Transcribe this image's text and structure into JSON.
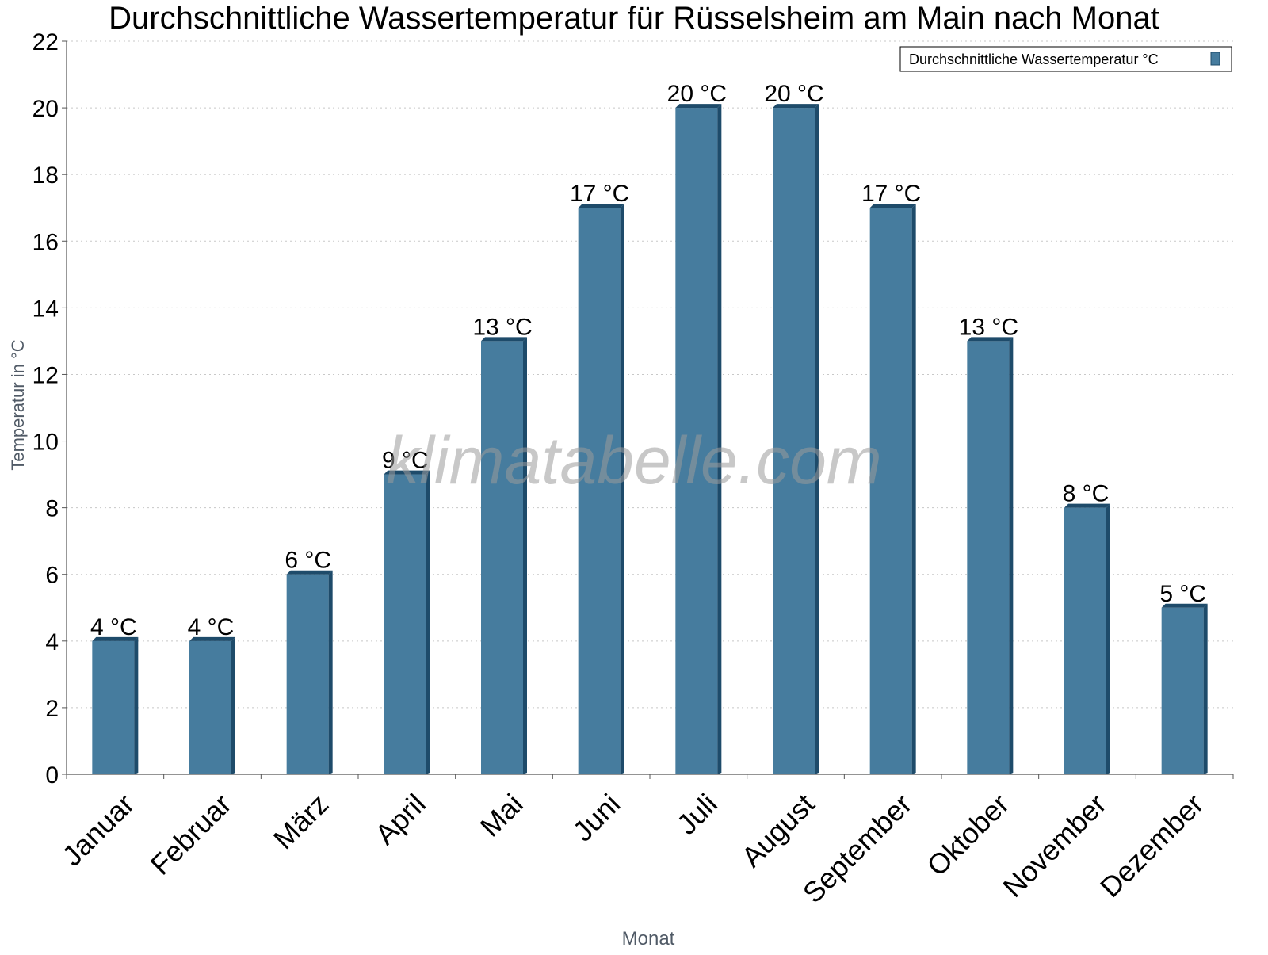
{
  "chart_data": {
    "type": "bar",
    "title": "Durchschnittliche Wassertemperatur für Rüsselsheim am Main nach Monat",
    "xlabel": "Monat",
    "ylabel": "Temperatur in °C",
    "ylim": [
      0,
      22
    ],
    "yticks": [
      0,
      2,
      4,
      6,
      8,
      10,
      12,
      14,
      16,
      18,
      20,
      22
    ],
    "grid": true,
    "legend_position": "top-right",
    "categories": [
      "Januar",
      "Februar",
      "März",
      "April",
      "Mai",
      "Juni",
      "Juli",
      "August",
      "September",
      "Oktober",
      "November",
      "Dezember"
    ],
    "series": [
      {
        "name": "Durchschnittliche Wassertemperatur °C",
        "values": [
          4,
          4,
          6,
          9,
          13,
          17,
          20,
          20,
          17,
          13,
          8,
          5
        ],
        "data_labels": [
          "4 °C",
          "4 °C",
          "6 °C",
          "9 °C",
          "13 °C",
          "17 °C",
          "20 °C",
          "20 °C",
          "17 °C",
          "13 °C",
          "8 °C",
          "5 °C"
        ],
        "color": "#467c9e",
        "shade_color": "#1e4b6a"
      }
    ],
    "watermark": "klimatabelle.com"
  }
}
